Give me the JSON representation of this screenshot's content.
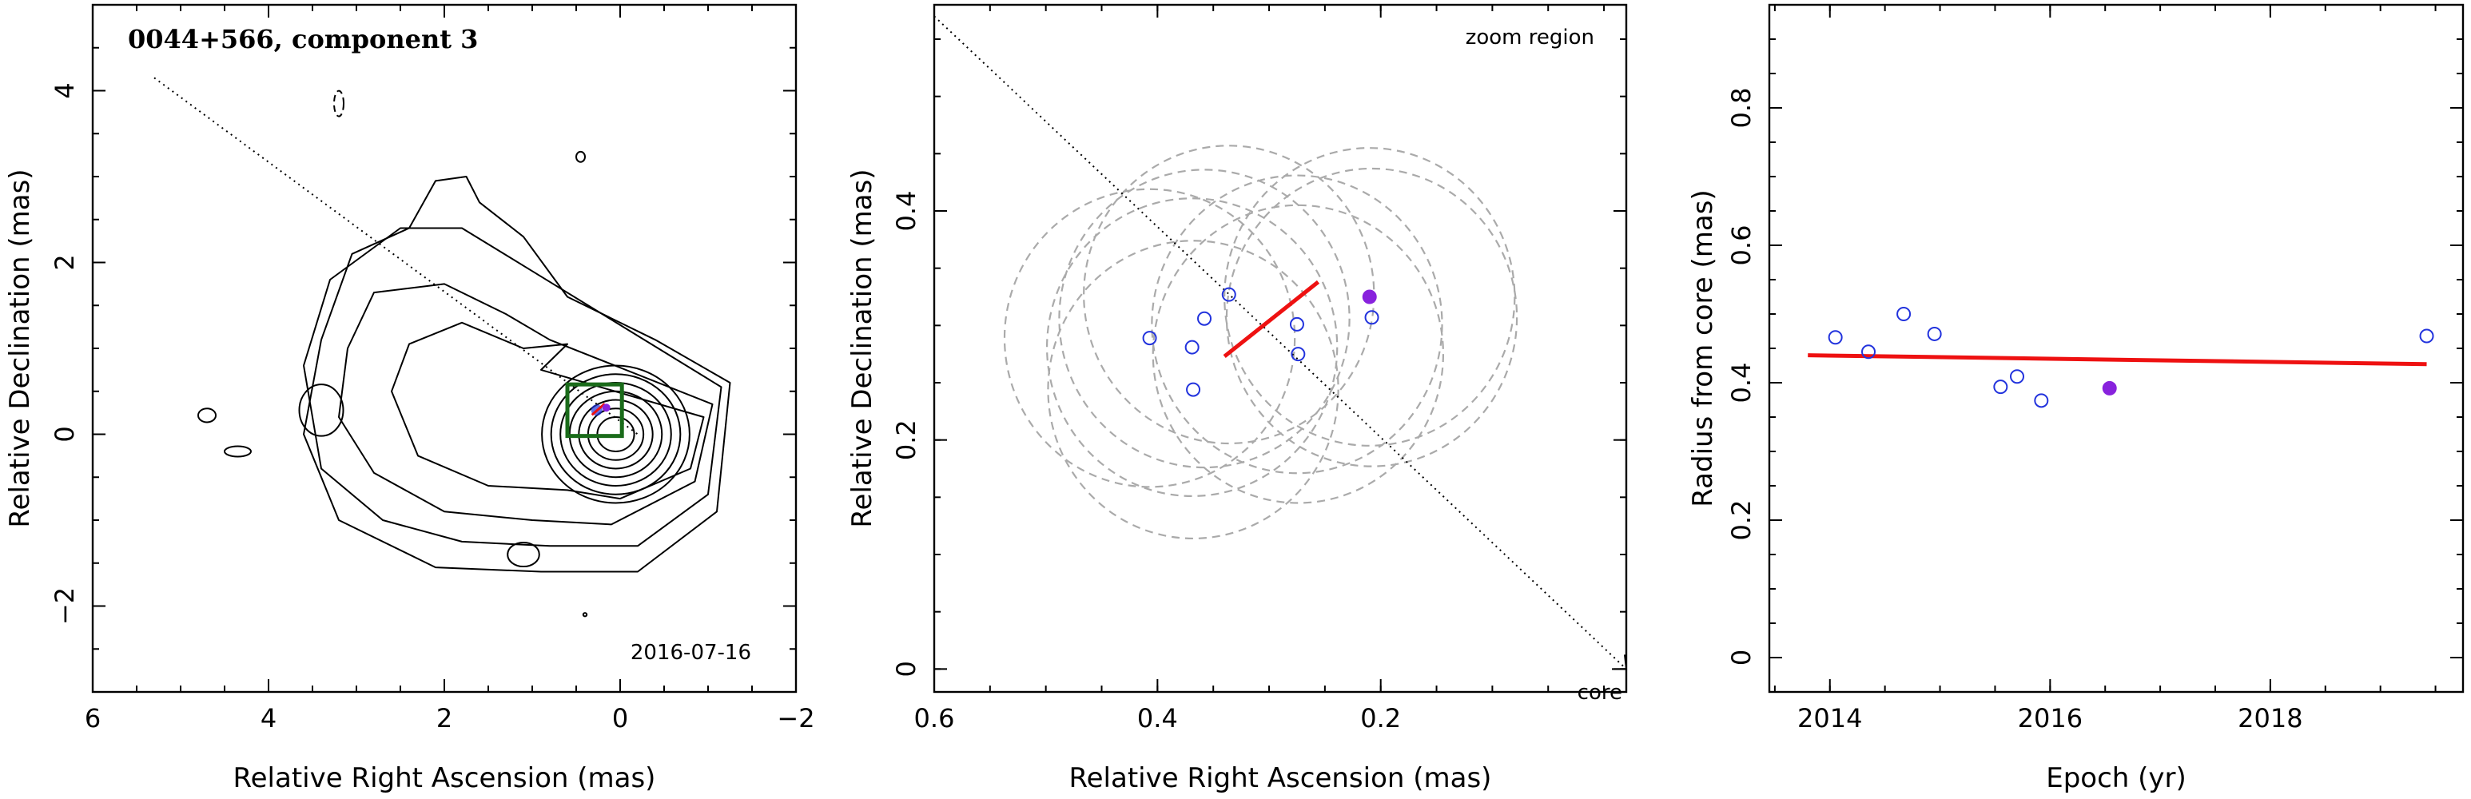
{
  "colors": {
    "trajectory": "#ee1111",
    "open_marker": "#2233dd",
    "filled_marker": "#8822dd",
    "box": "#1a6b1a",
    "ring": "#aaaaaa"
  },
  "chart_data": [
    {
      "type": "contour",
      "title": "0044+566, component 3",
      "annotation": "2016-07-16",
      "xlabel": "Relative Right Ascension (mas)",
      "ylabel": "Relative Declination (mas)",
      "xlim": [
        6,
        -2
      ],
      "ylim": [
        -3,
        5
      ],
      "xticks": [
        6,
        4,
        2,
        0,
        -2
      ],
      "yticks": [
        -2,
        0,
        2,
        4
      ],
      "xticklabels": [
        "6",
        "4",
        "2",
        "0",
        "−2"
      ],
      "yticklabels": [
        "−2",
        "0",
        "2",
        "4"
      ],
      "jet_direction_line": [
        [
          5.3,
          4.15
        ],
        [
          -0.2,
          -0.0
        ]
      ],
      "zoom_box": {
        "x": [
          0.6,
          -0.02
        ],
        "y": [
          -0.02,
          0.58
        ]
      },
      "component_position": [
        0.23,
        0.3
      ],
      "contour_levels": 12,
      "grid": false
    },
    {
      "type": "scatter",
      "annotation": "zoom region",
      "core_label": "core",
      "xlabel": "Relative Right Ascension (mas)",
      "ylabel": "Relative Declination (mas)",
      "xlim": [
        0.6,
        -0.02
      ],
      "ylim": [
        -0.02,
        0.58
      ],
      "xticks": [
        0.6,
        0.4,
        0.2
      ],
      "yticks": [
        0,
        0.2,
        0.4
      ],
      "xticklabels": [
        "0.6",
        "0.4",
        "0.2"
      ],
      "yticklabels": [
        "0",
        "0.2",
        "0.4"
      ],
      "points_open": [
        {
          "x": 0.407,
          "y": 0.289
        },
        {
          "x": 0.369,
          "y": 0.281
        },
        {
          "x": 0.358,
          "y": 0.306
        },
        {
          "x": 0.336,
          "y": 0.327
        },
        {
          "x": 0.368,
          "y": 0.244
        },
        {
          "x": 0.275,
          "y": 0.301
        },
        {
          "x": 0.274,
          "y": 0.275
        },
        {
          "x": 0.208,
          "y": 0.307
        }
      ],
      "point_filled": {
        "x": 0.21,
        "y": 0.325
      },
      "error_circle_radius": 0.13,
      "error_circle_centers": [
        [
          0.407,
          0.289
        ],
        [
          0.369,
          0.281
        ],
        [
          0.358,
          0.306
        ],
        [
          0.336,
          0.327
        ],
        [
          0.368,
          0.244
        ],
        [
          0.275,
          0.301
        ],
        [
          0.274,
          0.275
        ],
        [
          0.208,
          0.307
        ],
        [
          0.21,
          0.325
        ]
      ],
      "trajectory": [
        [
          0.34,
          0.273
        ],
        [
          0.256,
          0.338
        ]
      ],
      "direction_line": [
        [
          0.6,
          0.57
        ],
        [
          -0.02,
          0.0
        ]
      ],
      "grid": false
    },
    {
      "type": "scatter",
      "xlabel": "Epoch (yr)",
      "ylabel": "Radius from core (mas)",
      "xlim": [
        2013.45,
        2019.75
      ],
      "ylim": [
        -0.05,
        0.95
      ],
      "xticks": [
        2014,
        2016,
        2018
      ],
      "yticks": [
        0,
        0.2,
        0.4,
        0.6,
        0.8
      ],
      "xticklabels": [
        "2014",
        "2016",
        "2018"
      ],
      "yticklabels": [
        "0",
        "0.2",
        "0.4",
        "0.6",
        "0.8"
      ],
      "points_open": [
        {
          "x": 2014.05,
          "y": 0.466
        },
        {
          "x": 2014.35,
          "y": 0.445
        },
        {
          "x": 2014.67,
          "y": 0.5
        },
        {
          "x": 2014.95,
          "y": 0.471
        },
        {
          "x": 2015.55,
          "y": 0.394
        },
        {
          "x": 2015.7,
          "y": 0.409
        },
        {
          "x": 2015.92,
          "y": 0.374
        },
        {
          "x": 2019.42,
          "y": 0.468
        }
      ],
      "point_filled": {
        "x": 2016.54,
        "y": 0.392
      },
      "fit_line": [
        [
          2013.8,
          0.44
        ],
        [
          2019.42,
          0.427
        ]
      ],
      "grid": false
    }
  ]
}
